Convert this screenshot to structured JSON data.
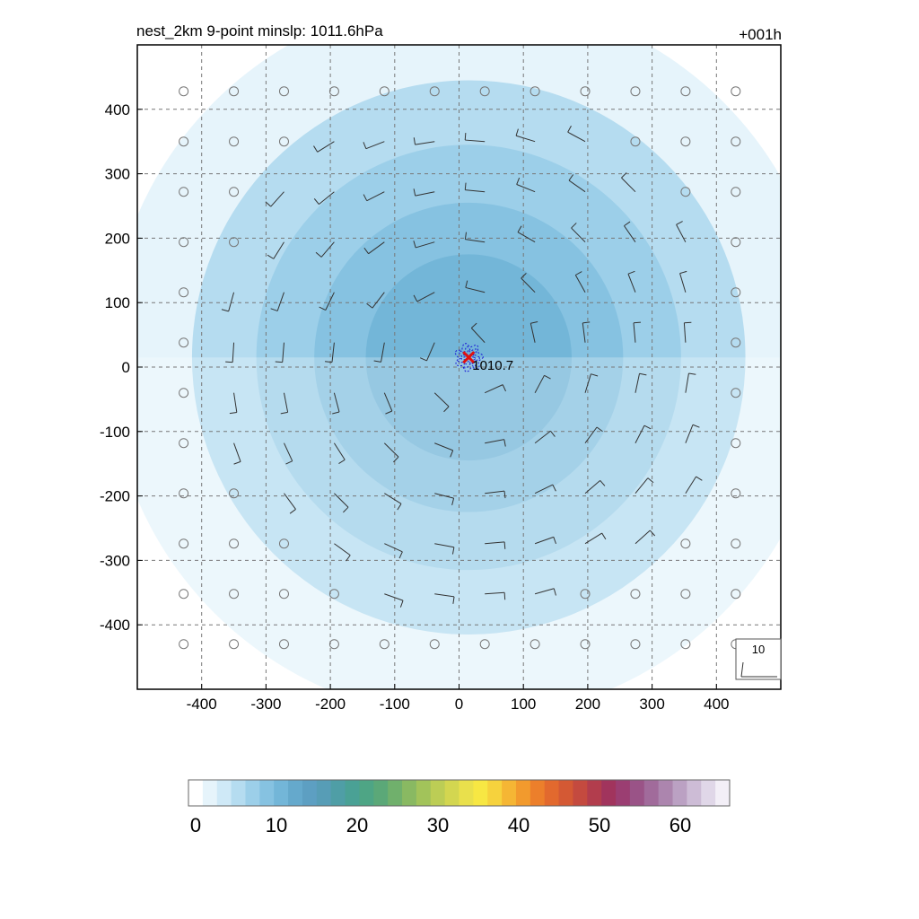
{
  "chart_data": {
    "type": "heatmap",
    "title": "nest_2km  9-point minslp: 1011.6hPa",
    "time_label": "+001h",
    "xlim": [
      -500,
      500
    ],
    "ylim": [
      -500,
      500
    ],
    "x_ticks": [
      -400,
      -300,
      -200,
      -100,
      0,
      100,
      200,
      300,
      400
    ],
    "y_ticks": [
      400,
      300,
      200,
      100,
      0,
      -100,
      -200,
      -300,
      -400
    ],
    "grid": "dashed",
    "center": {
      "x": 15,
      "y": 15,
      "marker": "red-x",
      "label": "1010.7"
    },
    "wind_speed_field": {
      "description_rings": [
        {
          "r_max": 560,
          "value": 2
        },
        {
          "r_max": 430,
          "value": 5
        },
        {
          "r_max": 330,
          "value": 7
        },
        {
          "r_max": 240,
          "value": 9
        },
        {
          "r_max": 160,
          "value": 11
        }
      ]
    },
    "barb_spacing": 78,
    "barb_offset": -428,
    "calm_radius": 400,
    "barb_legend": {
      "label": "10"
    },
    "colorbar": {
      "min": 0,
      "max": 67,
      "tick_values": [
        0,
        10,
        20,
        30,
        40,
        50,
        60
      ],
      "tick_labels": [
        "0",
        "10",
        "20",
        "30",
        "40",
        "50",
        "60"
      ],
      "colors": [
        "#ffffff",
        "#e6f4fb",
        "#cfe9f7",
        "#b5dcf0",
        "#9ccfe9",
        "#86c2e1",
        "#73b6d8",
        "#65a9cc",
        "#5d9fc2",
        "#579db6",
        "#4f9ea6",
        "#4aa195",
        "#4ea585",
        "#5ba878",
        "#70b06c",
        "#89b962",
        "#a2c35a",
        "#bccd55",
        "#d3d650",
        "#e9e04c",
        "#f7e743",
        "#f6d23d",
        "#f5b634",
        "#f29a2d",
        "#ec7f2b",
        "#e2692e",
        "#d45934",
        "#c44a3f",
        "#b23d4d",
        "#a1345d",
        "#9b3e72",
        "#9a5387",
        "#a16b9b",
        "#ac85ae",
        "#bba1c3",
        "#cdbcd6",
        "#e0d7e8",
        "#f3eff7"
      ]
    }
  }
}
